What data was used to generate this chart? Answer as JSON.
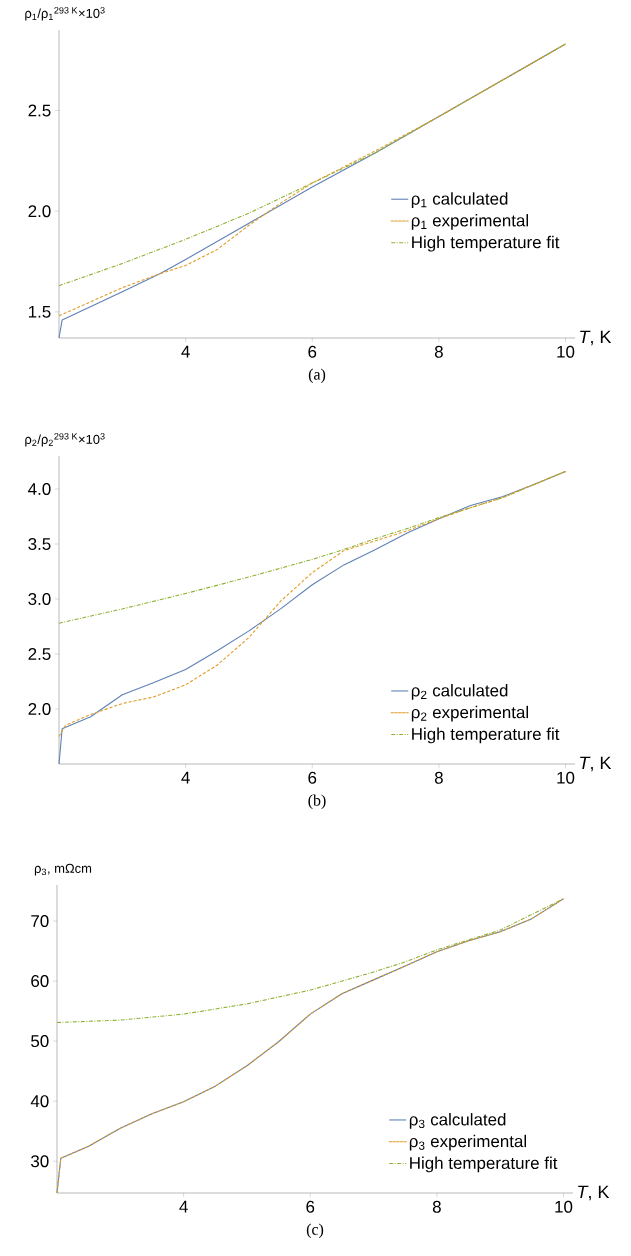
{
  "chart_data": [
    {
      "type": "line",
      "xlabel": "*T*, K",
      "ylabel": "ρ$_{1}$/ρ$_{1}$$^{293 K}$×10$^{3}$",
      "annotations": [
        "(a)"
      ],
      "xlim": [
        2,
        10.15
      ],
      "xticks": [
        4,
        6,
        8,
        10
      ],
      "ylim": [
        1.37,
        2.9
      ],
      "yticks": [
        1.5,
        {
          "value": 2,
          "label": "2.0"
        },
        2.5
      ],
      "legend": "right",
      "tick_labels": "xy",
      "series": [
        {
          "name": "ρ$_{1}$ calculated",
          "color": "#5e81b5",
          "line_style": "solid",
          "x": [
            2,
            2.05,
            3,
            3.6,
            4,
            5,
            6,
            7,
            8,
            9,
            10
          ],
          "values": [
            1.37,
            1.46,
            1.6,
            1.69,
            1.76,
            1.94,
            2.12,
            2.29,
            2.47,
            2.65,
            2.83
          ]
        },
        {
          "name": "ρ$_{1}$ experimental",
          "color": "#e19c24",
          "line_style": "dashed",
          "x": [
            2,
            3,
            3.6,
            4,
            4.5,
            5,
            5.5,
            6,
            7,
            8,
            9,
            10
          ],
          "values": [
            1.48,
            1.62,
            1.69,
            1.73,
            1.81,
            1.93,
            2.04,
            2.14,
            2.3,
            2.47,
            2.65,
            2.83
          ]
        },
        {
          "name": "High temperature fit",
          "color": "#8fb032",
          "line_style": "dashdot",
          "x": [
            2,
            3,
            4,
            5,
            6,
            7,
            8,
            9,
            10
          ],
          "values": [
            1.63,
            1.74,
            1.86,
            1.99,
            2.14,
            2.29,
            2.47,
            2.65,
            2.83
          ]
        }
      ]
    },
    {
      "type": "line",
      "xlabel": "*T*, K",
      "ylabel": "ρ$_{2}$/ρ$_{2}$$^{293 K}$×10$^{3}$",
      "annotations": [
        "(b)"
      ],
      "xlim": [
        2,
        10.15
      ],
      "xticks": [
        4,
        6,
        8,
        10
      ],
      "ylim": [
        1.5,
        4.3
      ],
      "yticks": [
        {
          "value": 2,
          "label": "2.0"
        },
        2.5,
        {
          "value": 3,
          "label": "3.0"
        },
        3.5,
        {
          "value": 4,
          "label": "4.0"
        }
      ],
      "legend": "bottom right",
      "series": [
        {
          "name": "ρ$_{2}$ calculated",
          "color": "#5e81b5",
          "line_style": "solid",
          "x": [
            2,
            2.05,
            2.5,
            3,
            3.5,
            4,
            4.5,
            5,
            5.5,
            6,
            6.5,
            7,
            7.5,
            8,
            8.5,
            9,
            9.5,
            10
          ],
          "values": [
            1.5,
            1.82,
            1.93,
            2.13,
            2.24,
            2.36,
            2.53,
            2.71,
            2.91,
            3.13,
            3.31,
            3.45,
            3.6,
            3.73,
            3.85,
            3.93,
            4.04,
            4.16
          ]
        },
        {
          "name": "ρ$_{2}$ experimental",
          "color": "#e19c24",
          "line_style": "dashed",
          "x": [
            2,
            2.1,
            2.5,
            3,
            3.5,
            4,
            4.5,
            5,
            5.5,
            6,
            6.5,
            7,
            7.5,
            8,
            8.5,
            9,
            9.5,
            10
          ],
          "values": [
            1.75,
            1.85,
            1.95,
            2.05,
            2.11,
            2.22,
            2.4,
            2.65,
            2.98,
            3.24,
            3.44,
            3.53,
            3.62,
            3.73,
            3.83,
            3.92,
            4.04,
            4.16
          ]
        },
        {
          "name": "High temperature fit",
          "color": "#8fb032",
          "line_style": "dashdot",
          "x": [
            2,
            3,
            4,
            5,
            6,
            6.5,
            7,
            7.5,
            8,
            9,
            10
          ],
          "values": [
            2.78,
            2.91,
            3.05,
            3.2,
            3.36,
            3.45,
            3.55,
            3.64,
            3.74,
            3.92,
            4.16
          ]
        }
      ]
    },
    {
      "type": "line",
      "xlabel": "*T*, K",
      "ylabel": "ρ$_{3}$, mΩcm",
      "annotations": [
        "(c)"
      ],
      "xlim": [
        2,
        10.15
      ],
      "xticks": [
        4,
        6,
        8,
        10
      ],
      "ylim": [
        24.7,
        76
      ],
      "yticks": [
        30,
        40,
        50,
        60,
        70
      ],
      "legend": "bottom right",
      "series": [
        {
          "name": "ρ$_{3}$ calculated",
          "color": "#5e81b5",
          "line_style": "solid",
          "x": [
            2,
            2.06,
            2.5,
            3,
            3.5,
            4,
            4.5,
            5,
            5.5,
            6,
            6.5,
            7,
            7.5,
            8,
            8.5,
            9,
            9.5,
            10
          ],
          "values": [
            24.7,
            30.5,
            32.5,
            35.5,
            37.9,
            39.9,
            42.5,
            45.9,
            49.9,
            54.5,
            57.9,
            60.2,
            62.5,
            64.9,
            66.7,
            68.2,
            70.4,
            73.7
          ]
        },
        {
          "name": "ρ$_{3}$ experimental",
          "color": "#e19c24",
          "line_style": "dashed",
          "x": [
            2,
            2.06,
            2.5,
            3,
            3.5,
            4,
            4.5,
            5,
            5.5,
            6,
            6.5,
            7,
            7.5,
            8,
            8.5,
            9,
            9.5,
            10
          ],
          "values": [
            24.7,
            30.5,
            32.5,
            35.5,
            37.9,
            39.9,
            42.5,
            45.9,
            49.9,
            54.5,
            57.9,
            60.2,
            62.5,
            64.9,
            66.7,
            68.2,
            70.4,
            73.7
          ]
        },
        {
          "name": "High temperature fit",
          "color": "#8fb032",
          "line_style": "dashdot",
          "x": [
            2,
            3,
            4,
            5,
            6,
            7,
            7.5,
            8,
            9,
            10
          ],
          "values": [
            53.1,
            53.5,
            54.5,
            56.2,
            58.5,
            61.5,
            63.2,
            65.2,
            68.5,
            73.7
          ]
        }
      ]
    }
  ]
}
